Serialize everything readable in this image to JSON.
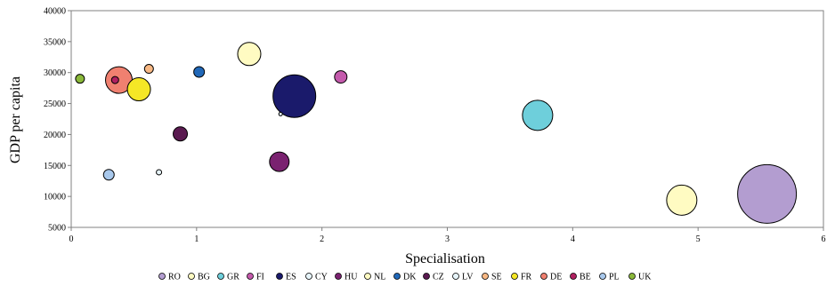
{
  "chart_data": {
    "type": "bubble",
    "xlabel": "Specialisation",
    "ylabel": "GDP per capita",
    "xlim": [
      0,
      6
    ],
    "ylim": [
      5000,
      40000
    ],
    "xticks": [
      "0",
      "1",
      "2",
      "3",
      "4",
      "5",
      "6"
    ],
    "yticks": [
      "5000",
      "10000",
      "15000",
      "20000",
      "25000",
      "30000",
      "35000",
      "40000"
    ],
    "grid": false,
    "legend_position": "bottom",
    "series": [
      {
        "name": "RO",
        "x": 5.55,
        "y": 10400,
        "size": 33,
        "color": "#b39dd0"
      },
      {
        "name": "BG",
        "x": 4.87,
        "y": 9400,
        "size": 17,
        "color": "#fffbc2"
      },
      {
        "name": "GR",
        "x": 3.72,
        "y": 23100,
        "size": 17,
        "color": "#6ecfdb"
      },
      {
        "name": "FI",
        "x": 2.15,
        "y": 29300,
        "size": 7,
        "color": "#c45aac"
      },
      {
        "name": "ES",
        "x": 1.78,
        "y": 26200,
        "size": 24,
        "color": "#1a1a6b"
      },
      {
        "name": "CY",
        "x": 1.67,
        "y": 23300,
        "size": 2,
        "color": "#e6f4fa"
      },
      {
        "name": "HU",
        "x": 1.66,
        "y": 15600,
        "size": 11,
        "color": "#7a2270"
      },
      {
        "name": "NL",
        "x": 1.42,
        "y": 33000,
        "size": 13,
        "color": "#fffbc2"
      },
      {
        "name": "DK",
        "x": 1.02,
        "y": 30100,
        "size": 6,
        "color": "#2168b8"
      },
      {
        "name": "CZ",
        "x": 0.87,
        "y": 20100,
        "size": 8,
        "color": "#5a1a50"
      },
      {
        "name": "LV",
        "x": 0.7,
        "y": 13900,
        "size": 3,
        "color": "#e6f4fa"
      },
      {
        "name": "SE",
        "x": 0.62,
        "y": 30600,
        "size": 5,
        "color": "#f8b884"
      },
      {
        "name": "FR",
        "x": 0.54,
        "y": 27300,
        "size": 13,
        "color": "#f5e726"
      },
      {
        "name": "DE",
        "x": 0.38,
        "y": 28800,
        "size": 15,
        "color": "#f08070"
      },
      {
        "name": "BE",
        "x": 0.35,
        "y": 28800,
        "size": 4,
        "color": "#b02060"
      },
      {
        "name": "PL",
        "x": 0.3,
        "y": 13500,
        "size": 6,
        "color": "#a8c8ec"
      },
      {
        "name": "UK",
        "x": 0.07,
        "y": 29000,
        "size": 5,
        "color": "#8ab83a"
      }
    ],
    "legend_order": [
      "RO",
      "BG",
      "GR",
      "FI",
      "ES",
      "CY",
      "HU",
      "NL",
      "DK",
      "CZ",
      "LV",
      "SE",
      "FR",
      "DE",
      "BE",
      "PL",
      "UK"
    ]
  }
}
